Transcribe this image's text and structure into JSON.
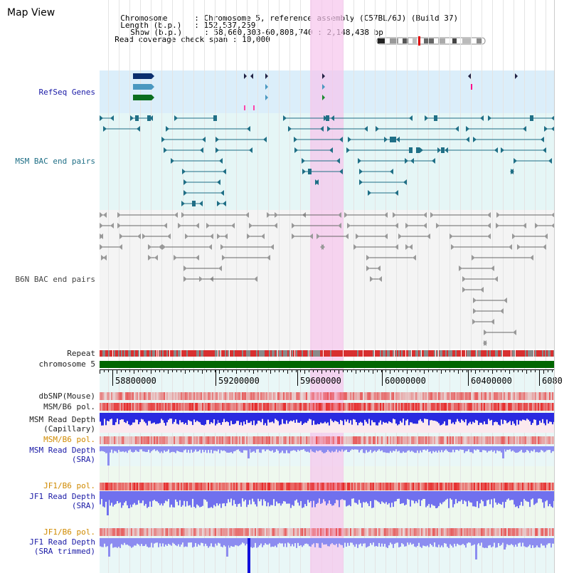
{
  "header": {
    "title": "Map View",
    "chromosome_label": "Chromosome",
    "chromosome_value": "Chromosome 5, reference assembly (C57BL/6J) (Build 37)",
    "length_label": "Length (b.p.)",
    "length_value": "152,537,259",
    "show_label": "Show (b.p.)",
    "show_value": "58,660,303-60,808,740 : 2,148,438 bp",
    "span_label": "Read coverage check span",
    "span_value": "10,000"
  },
  "tracks": {
    "refseq": "RefSeq Genes",
    "msm_bac": "MSM BAC end pairs",
    "b6n_bac": "B6N BAC end pairs",
    "repeat": "Repeat",
    "chromosome": "chromosome 5",
    "dbsnp": "dbSNP(Mouse)",
    "msm_pol": "MSM/B6 pol.",
    "msm_depth_cap_1": "MSM Read Depth",
    "msm_depth_cap_2": "(Capillary)",
    "msm_pol_2": "MSM/B6 pol.",
    "msm_depth_sra_1": "MSM Read Depth",
    "msm_depth_sra_2": "(SRA)",
    "jf1_pol": "JF1/B6 pol.",
    "jf1_depth_sra_1": "JF1 Read Depth",
    "jf1_depth_sra_2": "(SRA)",
    "jf1_pol_2": "JF1/B6 pol.",
    "jf1_depth_trim_1": "JF1 Read Depth",
    "jf1_depth_trim_2": "(SRA trimmed)"
  },
  "axis": {
    "ticks": [
      "58800000",
      "59200000",
      "59600000",
      "60000000",
      "60400000",
      "6080"
    ]
  },
  "colors": {
    "refseq_bg": "#dbeefa",
    "msm_bg": "#e5f6f6",
    "b6n_bg": "#f1f1f1",
    "highlight": "#f9d3f0",
    "msm_feature": "#1f6f86",
    "b6n_feature": "#666666",
    "chromosome_bar": "#006600",
    "depth_blue": "#2222dd",
    "pol_red": "#e03030"
  }
}
